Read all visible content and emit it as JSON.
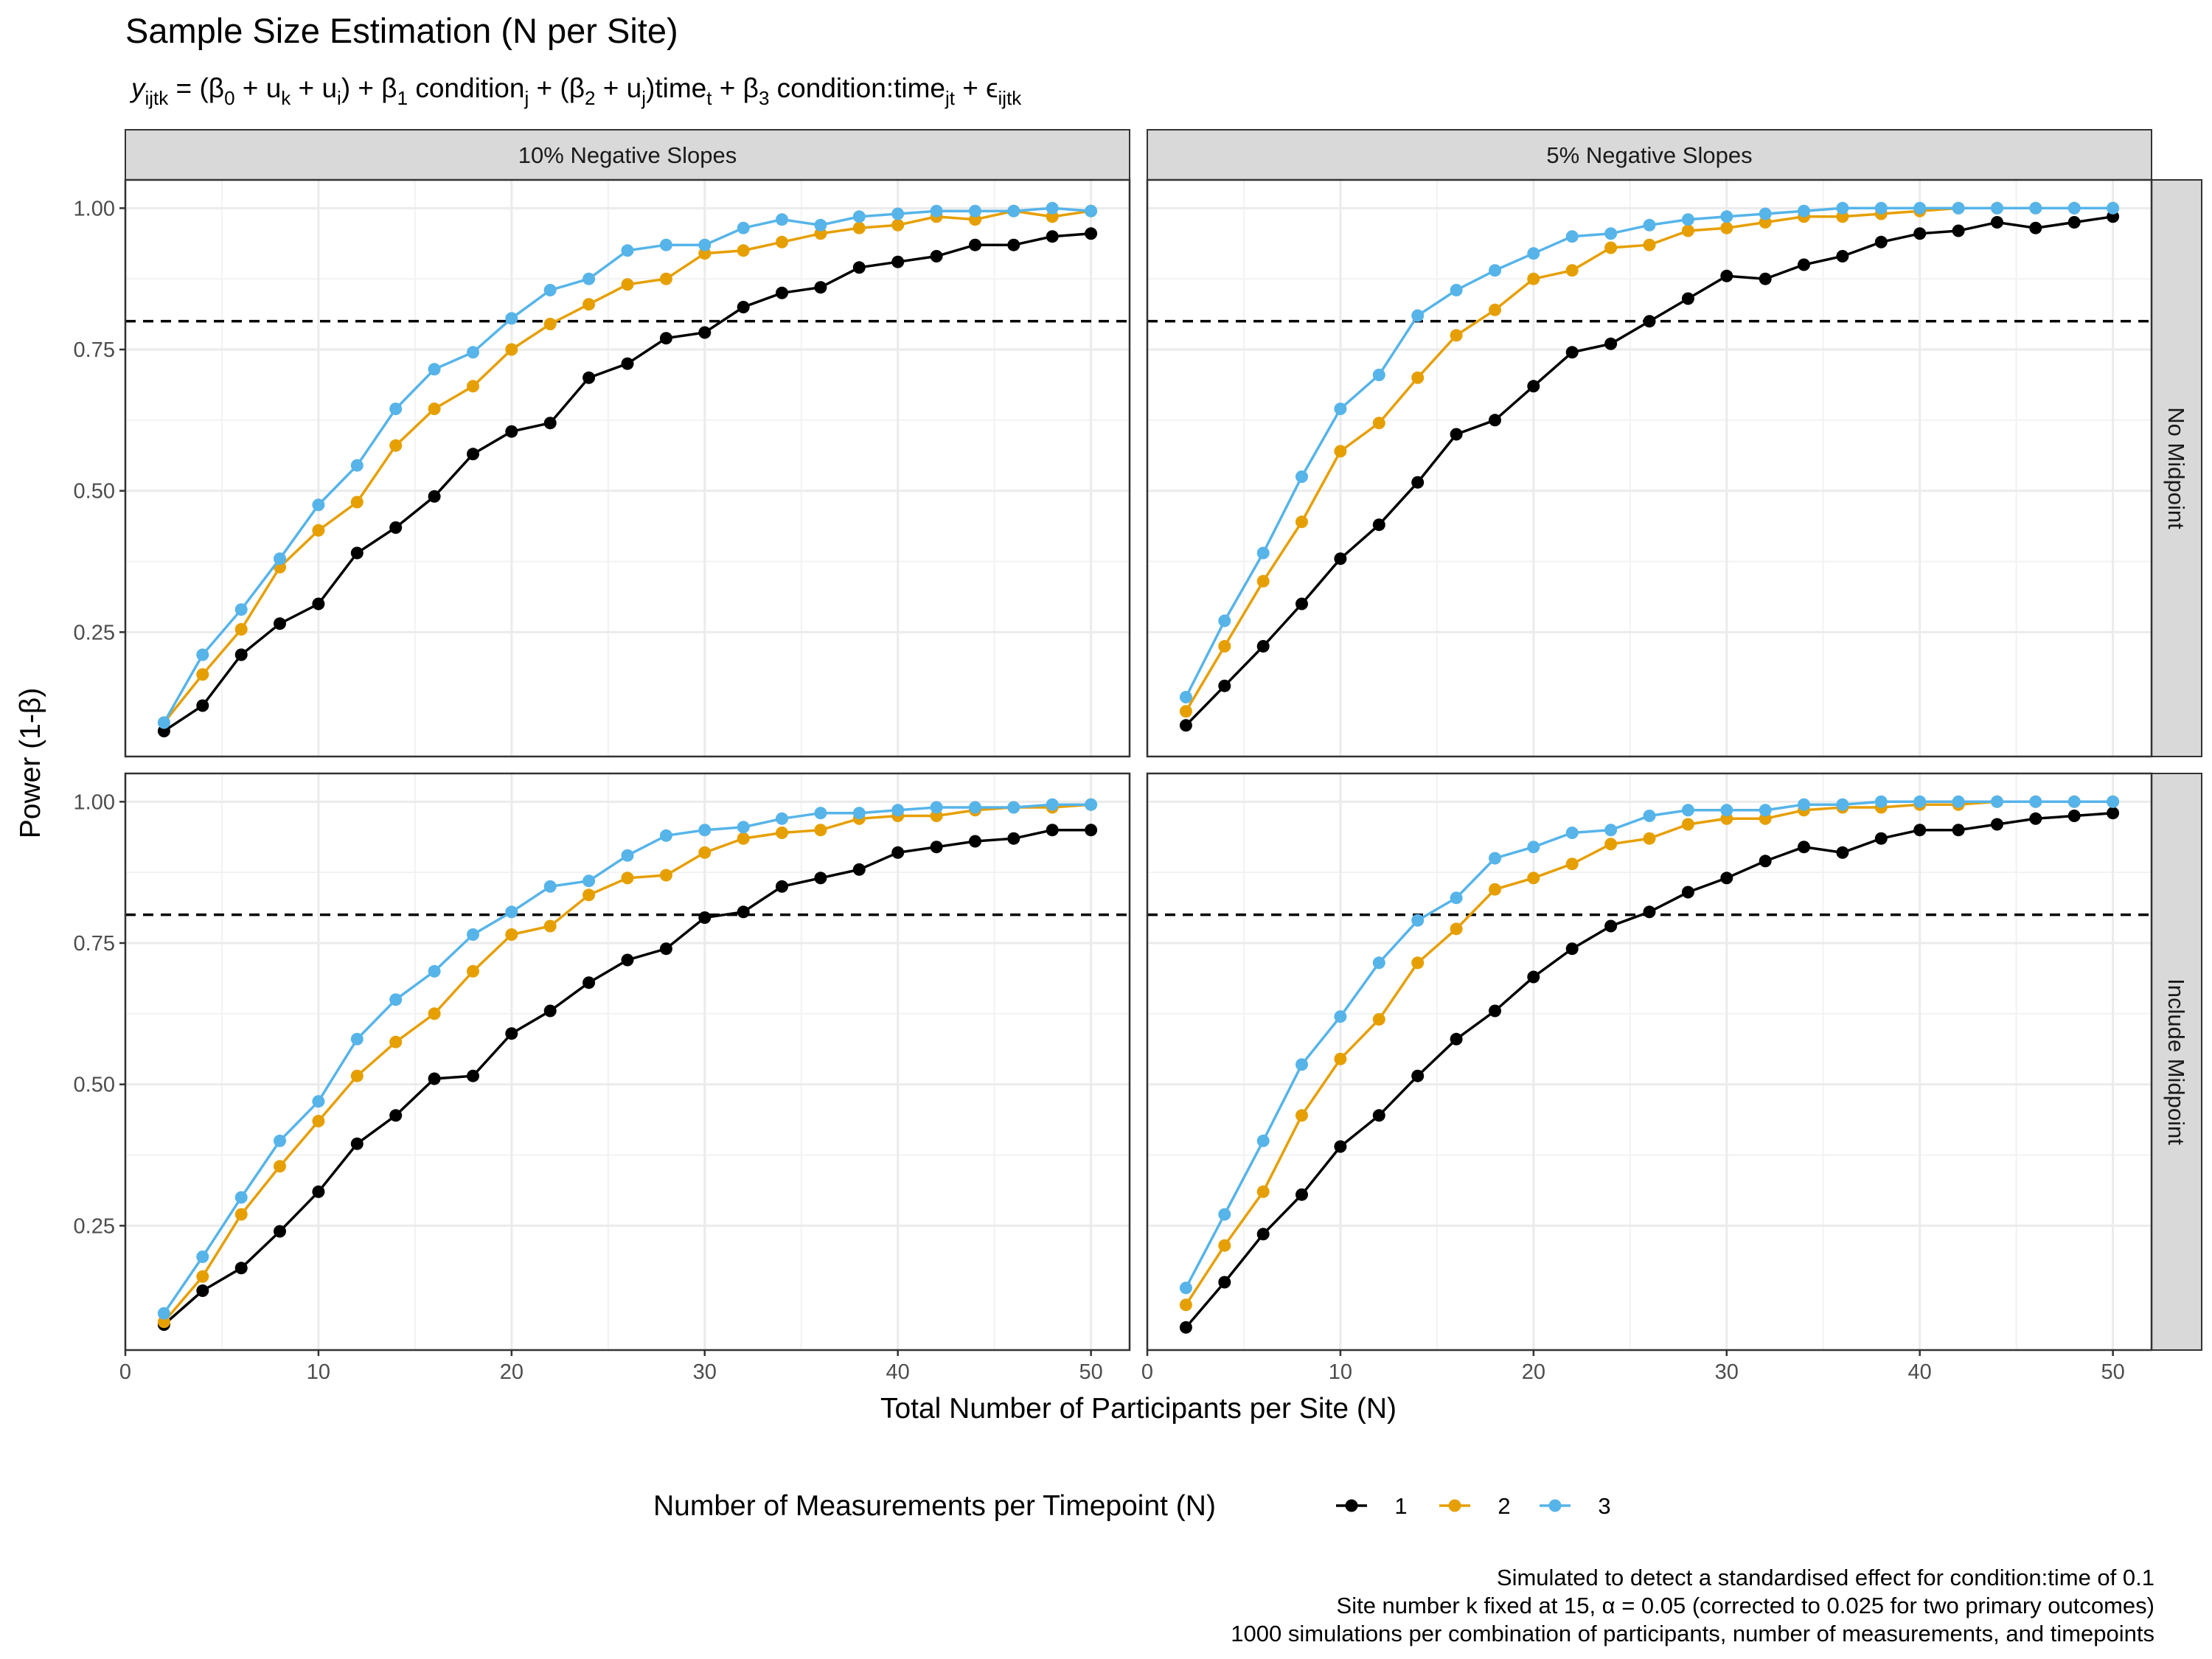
{
  "chart_data": {
    "type": "line",
    "title": "Sample Size Estimation (N per Site)",
    "formula": {
      "y": "y",
      "y_sub": "ijtk",
      "p1": " = (β",
      "s1": "0",
      "p2": " + u",
      "s2": "k",
      "p3": " + u",
      "s3": "i",
      "p4": ") + β",
      "s4": "1",
      "p5": " condition",
      "s5": "j",
      "p6": " + (β",
      "s6": "2",
      "p7": " + u",
      "s7": "j",
      "p8": ")time",
      "s8": "t",
      "p9": " + β",
      "s9": "3",
      "p10": " condition:time",
      "s10": "jt",
      "p11": " + ϵ",
      "s11": "ijtk"
    },
    "xlabel": "Total Number of Participants per Site (N)",
    "ylabel": "Power (1-β)",
    "xlim": [
      0,
      52
    ],
    "ylim": [
      0.03,
      1.05
    ],
    "x_ticks": [
      0,
      10,
      20,
      30,
      40,
      50
    ],
    "x_tick_labels": [
      "0",
      "10",
      "20",
      "30",
      "40",
      "50"
    ],
    "y_ticks": [
      0.25,
      0.5,
      0.75,
      1.0
    ],
    "y_tick_labels": [
      "0.25",
      "0.50",
      "0.75",
      "1.00"
    ],
    "reference_line": 0.8,
    "grid": true,
    "legend": {
      "title": "Number of Measurements per Timepoint (N)",
      "position": "bottom",
      "entries": [
        {
          "label": "1",
          "color": "#000000"
        },
        {
          "label": "2",
          "color": "#E69F00"
        },
        {
          "label": "3",
          "color": "#56B4E9"
        }
      ]
    },
    "col_labels": [
      "10% Negative Slopes",
      "5% Negative Slopes"
    ],
    "row_labels": [
      "No Midpoint",
      "Include Midpoint"
    ],
    "x": [
      2,
      4,
      6,
      8,
      10,
      12,
      14,
      16,
      18,
      20,
      22,
      24,
      26,
      28,
      30,
      32,
      34,
      36,
      38,
      40,
      42,
      44,
      46,
      48,
      50
    ],
    "panels": [
      {
        "col": "10% Negative Slopes",
        "row": "No Midpoint",
        "series": [
          {
            "name": "1",
            "values": [
              0.075,
              0.12,
              0.21,
              0.265,
              0.3,
              0.39,
              0.435,
              0.49,
              0.565,
              0.605,
              0.62,
              0.7,
              0.725,
              0.77,
              0.78,
              0.825,
              0.85,
              0.86,
              0.895,
              0.905,
              0.915,
              0.935,
              0.935,
              0.95,
              0.955
            ]
          },
          {
            "name": "2",
            "values": [
              0.09,
              0.175,
              0.255,
              0.365,
              0.43,
              0.48,
              0.58,
              0.645,
              0.685,
              0.75,
              0.795,
              0.83,
              0.865,
              0.875,
              0.92,
              0.925,
              0.94,
              0.955,
              0.965,
              0.97,
              0.985,
              0.98,
              0.995,
              0.985,
              0.995
            ]
          },
          {
            "name": "3",
            "values": [
              0.09,
              0.21,
              0.29,
              0.38,
              0.475,
              0.545,
              0.645,
              0.715,
              0.745,
              0.805,
              0.855,
              0.875,
              0.925,
              0.935,
              0.935,
              0.965,
              0.98,
              0.97,
              0.985,
              0.99,
              0.995,
              0.995,
              0.995,
              1.0,
              0.995
            ]
          }
        ]
      },
      {
        "col": "5% Negative Slopes",
        "row": "No Midpoint",
        "series": [
          {
            "name": "1",
            "values": [
              0.085,
              0.155,
              0.225,
              0.3,
              0.38,
              0.44,
              0.515,
              0.6,
              0.625,
              0.685,
              0.745,
              0.76,
              0.8,
              0.84,
              0.88,
              0.875,
              0.9,
              0.915,
              0.94,
              0.955,
              0.96,
              0.975,
              0.965,
              0.975,
              0.985
            ]
          },
          {
            "name": "2",
            "values": [
              0.11,
              0.225,
              0.34,
              0.445,
              0.57,
              0.62,
              0.7,
              0.775,
              0.82,
              0.875,
              0.89,
              0.93,
              0.935,
              0.96,
              0.965,
              0.975,
              0.985,
              0.985,
              0.99,
              0.995,
              1.0,
              1.0,
              1.0,
              1.0,
              1.0
            ]
          },
          {
            "name": "3",
            "values": [
              0.135,
              0.27,
              0.39,
              0.525,
              0.645,
              0.705,
              0.81,
              0.855,
              0.89,
              0.92,
              0.95,
              0.955,
              0.97,
              0.98,
              0.985,
              0.99,
              0.995,
              1.0,
              1.0,
              1.0,
              1.0,
              1.0,
              1.0,
              1.0,
              1.0
            ]
          }
        ]
      },
      {
        "col": "10% Negative Slopes",
        "row": "Include Midpoint",
        "series": [
          {
            "name": "1",
            "values": [
              0.075,
              0.135,
              0.175,
              0.24,
              0.31,
              0.395,
              0.445,
              0.51,
              0.515,
              0.59,
              0.63,
              0.68,
              0.72,
              0.74,
              0.795,
              0.805,
              0.85,
              0.865,
              0.88,
              0.91,
              0.92,
              0.93,
              0.935,
              0.95,
              0.95
            ]
          },
          {
            "name": "2",
            "values": [
              0.08,
              0.16,
              0.27,
              0.355,
              0.435,
              0.515,
              0.575,
              0.625,
              0.7,
              0.765,
              0.78,
              0.835,
              0.865,
              0.87,
              0.91,
              0.935,
              0.945,
              0.95,
              0.97,
              0.975,
              0.975,
              0.985,
              0.99,
              0.99,
              0.995
            ]
          },
          {
            "name": "3",
            "values": [
              0.095,
              0.195,
              0.3,
              0.4,
              0.47,
              0.58,
              0.65,
              0.7,
              0.765,
              0.805,
              0.85,
              0.86,
              0.905,
              0.94,
              0.95,
              0.955,
              0.97,
              0.98,
              0.98,
              0.985,
              0.99,
              0.99,
              0.99,
              0.995,
              0.995
            ]
          }
        ]
      },
      {
        "col": "5% Negative Slopes",
        "row": "Include Midpoint",
        "series": [
          {
            "name": "1",
            "values": [
              0.07,
              0.15,
              0.235,
              0.305,
              0.39,
              0.445,
              0.515,
              0.58,
              0.63,
              0.69,
              0.74,
              0.78,
              0.805,
              0.84,
              0.865,
              0.895,
              0.92,
              0.91,
              0.935,
              0.95,
              0.95,
              0.96,
              0.97,
              0.975,
              0.98
            ]
          },
          {
            "name": "2",
            "values": [
              0.11,
              0.215,
              0.31,
              0.445,
              0.545,
              0.615,
              0.715,
              0.775,
              0.845,
              0.865,
              0.89,
              0.925,
              0.935,
              0.96,
              0.97,
              0.97,
              0.985,
              0.99,
              0.99,
              0.995,
              0.995,
              1.0,
              1.0,
              1.0,
              1.0
            ]
          },
          {
            "name": "3",
            "values": [
              0.14,
              0.27,
              0.4,
              0.535,
              0.62,
              0.715,
              0.79,
              0.83,
              0.9,
              0.92,
              0.945,
              0.95,
              0.975,
              0.985,
              0.985,
              0.985,
              0.995,
              0.995,
              1.0,
              1.0,
              1.0,
              1.0,
              1.0,
              1.0,
              1.0
            ]
          }
        ]
      }
    ],
    "caption": [
      "Simulated to detect a standardised effect for condition:time of 0.1",
      "Site number k fixed at 15, α = 0.05 (corrected to 0.025 for two primary outcomes)",
      "1000 simulations per combination of participants, number of measurements, and timepoints"
    ]
  }
}
